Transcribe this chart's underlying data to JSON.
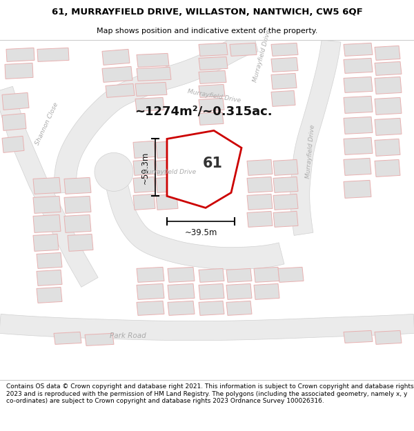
{
  "title": "61, MURRAYFIELD DRIVE, WILLASTON, NANTWICH, CW5 6QF",
  "subtitle": "Map shows position and indicative extent of the property.",
  "footer": "Contains OS data © Crown copyright and database right 2021. This information is subject to Crown copyright and database rights 2023 and is reproduced with the permission of HM Land Registry. The polygons (including the associated geometry, namely x, y co-ordinates) are subject to Crown copyright and database rights 2023 Ordnance Survey 100026316.",
  "area_label": "~1274m²/~0.315ac.",
  "property_number": "61",
  "dim_width": "~39.5m",
  "dim_height": "~59.3m",
  "map_bg": "#f7f7f7",
  "building_fill": "#e0e0e0",
  "building_edge": "#e8b0b0",
  "road_fill": "#ebebeb",
  "road_edge": "#d0d0d0",
  "highlight_fill": "#ffffff",
  "highlight_edge": "#cc0000",
  "label_color": "#aaaaaa",
  "title_fontsize": 9.5,
  "subtitle_fontsize": 8,
  "footer_fontsize": 6.5
}
